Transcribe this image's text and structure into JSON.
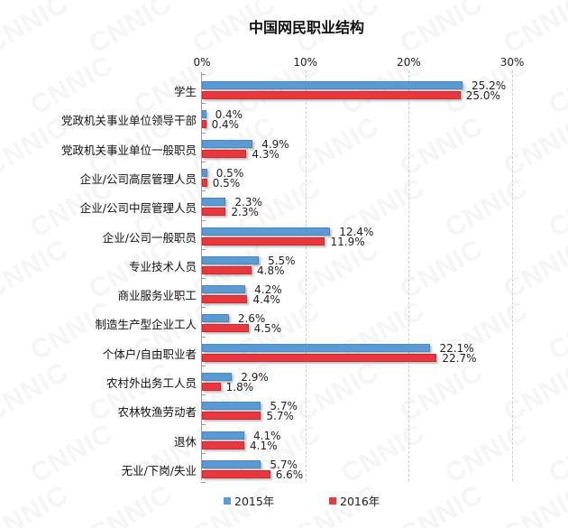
{
  "chart_data": {
    "type": "bar",
    "orientation": "horizontal",
    "title": "中国网民职业结构",
    "xlabel": "",
    "ylabel": "",
    "xlim": [
      0,
      30
    ],
    "x_ticks": [
      "0%",
      "10%",
      "20%",
      "30%"
    ],
    "grid": "vertical dashed",
    "legend_position": "bottom",
    "categories": [
      "学生",
      "党政机关事业单位领导干部",
      "党政机关事业单位一般职员",
      "企业/公司高层管理人员",
      "企业/公司中层管理人员",
      "企业/公司一般职员",
      "专业技术人员",
      "商业服务业职工",
      "制造生产型企业工人",
      "个体户/自由职业者",
      "农村外出务工人员",
      "农林牧渔劳动者",
      "退休",
      "无业/下岗/失业"
    ],
    "series": [
      {
        "name": "2015年",
        "color": "#5b9bd5",
        "values": [
          25.2,
          0.4,
          4.9,
          0.5,
          2.3,
          12.4,
          5.5,
          4.2,
          2.6,
          22.1,
          2.9,
          5.7,
          4.1,
          5.7
        ],
        "labels": [
          "25.2%",
          "0.4%",
          "4.9%",
          "0.5%",
          "2.3%",
          "12.4%",
          "5.5%",
          "4.2%",
          "2.6%",
          "22.1%",
          "2.9%",
          "5.7%",
          "4.1%",
          "5.7%"
        ]
      },
      {
        "name": "2016年",
        "color": "#e8383d",
        "values": [
          25.0,
          0.4,
          4.3,
          0.5,
          2.3,
          11.9,
          4.8,
          4.4,
          4.5,
          22.7,
          1.8,
          5.7,
          4.1,
          6.6
        ],
        "labels": [
          "25.0%",
          "0.4%",
          "4.3%",
          "0.5%",
          "2.3%",
          "11.9%",
          "4.8%",
          "4.4%",
          "4.5%",
          "22.7%",
          "1.8%",
          "5.7%",
          "4.1%",
          "6.6%"
        ]
      }
    ]
  },
  "watermark": "CNNIC"
}
